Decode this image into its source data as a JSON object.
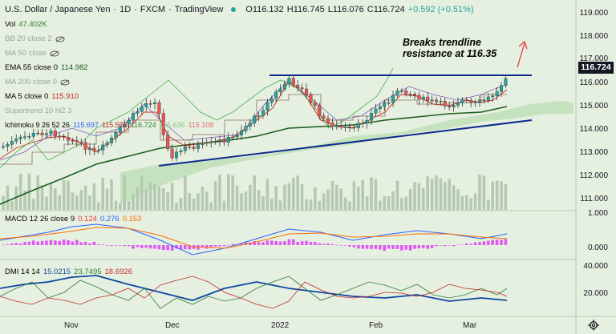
{
  "header": {
    "symbol": "U.S. Dollar / Japanese Yen",
    "interval": "1D",
    "exchange": "FXCM",
    "source": "TradingView",
    "ohlc": {
      "o": "O116.132",
      "h": "H116.745",
      "l": "L116.076",
      "c": "C116.724",
      "chg": "+0.592 (+0.51%)"
    }
  },
  "indicators": {
    "vol": {
      "label": "Vol",
      "value": "47.402K"
    },
    "bb": {
      "label": "BB 20 close 2"
    },
    "ma50": {
      "label": "MA 50 close"
    },
    "ema55": {
      "label": "EMA 55 close 0",
      "value": "114.982"
    },
    "ma200": {
      "label": "MA 200 close 0"
    },
    "ma5": {
      "label": "MA 5 close 0",
      "value": "115.910"
    },
    "supertrend": {
      "label": "Supertrend 10 hl2 3"
    },
    "ichimoku": {
      "label": "Ichimoku 9 26 52 26",
      "v1": "115.697",
      "v2": "115.576",
      "v3": "116.724",
      "v4": "115.636",
      "v5": "115.108"
    }
  },
  "macd": {
    "label": "MACD 12 26 close 9",
    "v1": "0.124",
    "v2": "0.276",
    "v3": "0.153"
  },
  "dmi": {
    "label": "DMI 14 14",
    "v1": "15.0215",
    "v2": "23.7495",
    "v3": "18.6926"
  },
  "price_axis": [
    "119.000",
    "118.000",
    "117.000",
    "116.000",
    "115.000",
    "114.000",
    "113.000",
    "112.000",
    "111.000"
  ],
  "macd_axis": [
    "1.000",
    "0.000"
  ],
  "dmi_axis": [
    "40.000",
    "20.000"
  ],
  "last_price": "116.724",
  "time_axis": [
    "Nov",
    "Dec",
    "2022",
    "Feb",
    "Mar"
  ],
  "annotation": {
    "line1": "Breaks trendline",
    "line2": "resistance at 116.35"
  },
  "colors": {
    "bg": "#e6f0e0",
    "up": "#26a69a",
    "down": "#ef5350",
    "ema55": "#1b5e20",
    "ma5": "#c62828",
    "trend": "#0d2a8c",
    "macd": "#2962ff",
    "signal": "#ff6d00"
  },
  "icons": [
    "eye-icon",
    "settings-icon",
    "status-dot-icon",
    "arrow-up-icon"
  ]
}
